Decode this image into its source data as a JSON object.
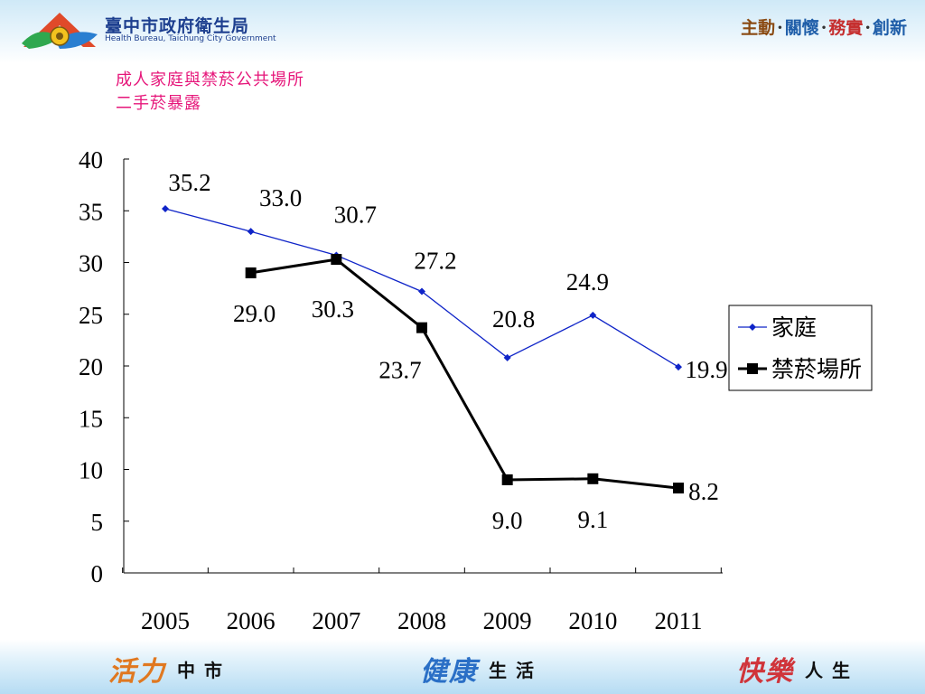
{
  "header": {
    "org_name": "臺中市政府衛生局",
    "org_name_en": "Health Bureau, Taichung City Government",
    "slogan": [
      "主動",
      "關懷",
      "務實",
      "創新"
    ]
  },
  "slide_title": [
    "成人家庭與禁菸公共場所",
    "二手菸暴露"
  ],
  "colors": {
    "title": "#e6167a",
    "home": "#0f24c8",
    "public": "#000000"
  },
  "chart_data": {
    "type": "line",
    "title": "",
    "xlabel": "",
    "ylabel": "",
    "x": [
      "2005",
      "2006",
      "2007",
      "2008",
      "2009",
      "2010",
      "2011"
    ],
    "ylim": [
      0,
      40
    ],
    "yticks": [
      0,
      5,
      10,
      15,
      20,
      25,
      30,
      35,
      40
    ],
    "grid": false,
    "legend_position": "right",
    "series": [
      {
        "name": "家庭",
        "color": "#0f24c8",
        "marker": "diamond",
        "values": [
          35.2,
          33.0,
          30.7,
          27.2,
          20.8,
          24.9,
          19.9
        ],
        "labels": [
          "35.2",
          "33.0",
          "30.7",
          "27.2",
          "20.8",
          "24.9",
          "19.9"
        ]
      },
      {
        "name": "禁菸場所",
        "color": "#000000",
        "marker": "square",
        "values": [
          null,
          29.0,
          30.3,
          23.7,
          9.0,
          9.1,
          8.2
        ],
        "labels": [
          null,
          "29.0",
          "30.3",
          "23.7",
          "9.0",
          "9.1",
          "8.2"
        ]
      }
    ]
  },
  "footer": [
    {
      "big": "活力",
      "small": "中市"
    },
    {
      "big": "健康",
      "small": "生活"
    },
    {
      "big": "快樂",
      "small": "人生"
    }
  ]
}
